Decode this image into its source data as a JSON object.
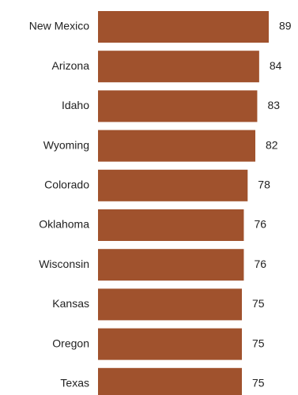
{
  "chart_data": {
    "type": "bar",
    "orientation": "horizontal",
    "categories": [
      "New Mexico",
      "Arizona",
      "Idaho",
      "Wyoming",
      "Colorado",
      "Oklahoma",
      "Wisconsin",
      "Kansas",
      "Oregon",
      "Texas"
    ],
    "values": [
      89,
      84,
      83,
      82,
      78,
      76,
      76,
      75,
      75,
      75
    ],
    "value_labels": [
      "89",
      "84",
      "83",
      "82",
      "78",
      "76",
      "76",
      "75",
      "75",
      "75"
    ],
    "title": "",
    "xlabel": "",
    "ylabel": "",
    "bar_color": "#a0522d",
    "grid": false,
    "legend": "none"
  }
}
